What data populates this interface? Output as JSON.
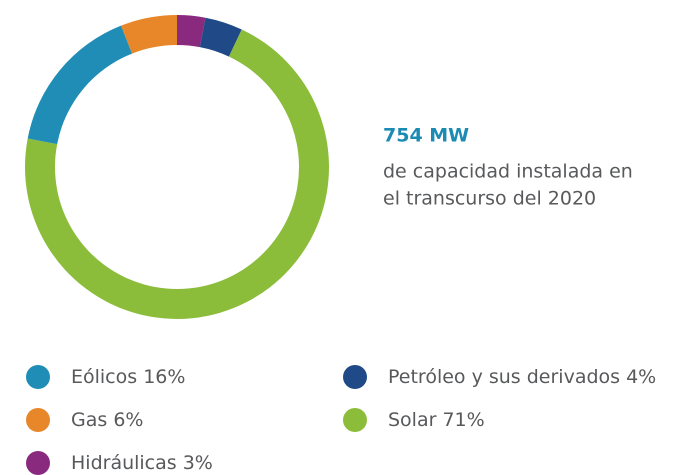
{
  "chart_data": {
    "type": "donut",
    "categories": [
      "Eólicos",
      "Gas",
      "Hidráulicas",
      "Petróleo y sus derivados",
      "Solar"
    ],
    "values": [
      16,
      6,
      3,
      4,
      71
    ],
    "value_labels": [
      "16%",
      "6%",
      "3%",
      "4%",
      "71%"
    ],
    "colors": [
      "#1f8db5",
      "#e8862a",
      "#8a2a7f",
      "#1f4a87",
      "#8bbd3b"
    ],
    "annotation": {
      "title": "754 MW",
      "lines": [
        "de capacidad instalada en",
        "el transcurso del 2020"
      ]
    }
  }
}
